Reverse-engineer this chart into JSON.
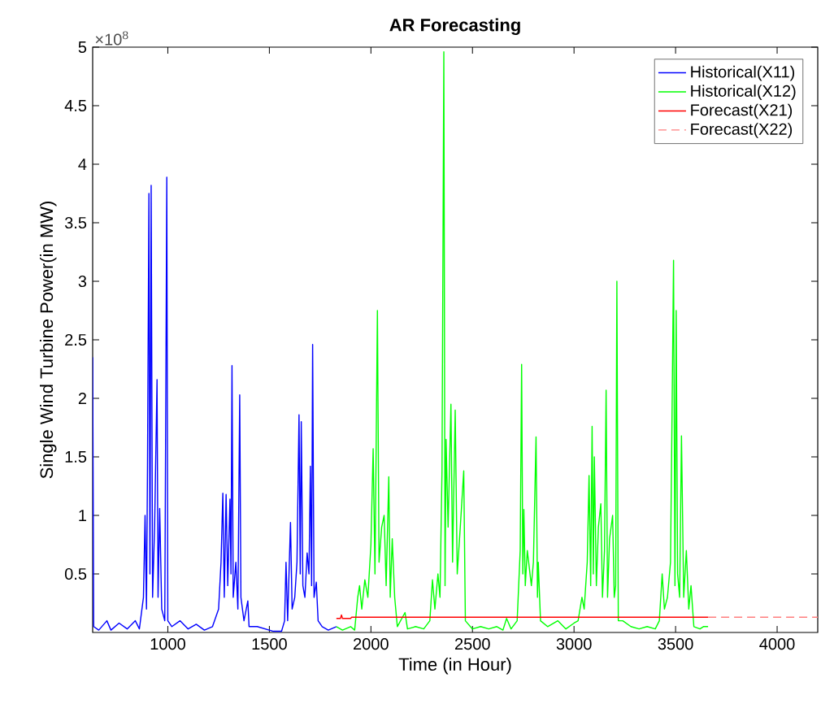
{
  "chart_data": {
    "type": "line",
    "title": "AR Forecasting",
    "xlabel": "Time (in Hour)",
    "ylabel": "Single Wind Turbine Power(in MW)",
    "annotations": [
      "×10$^{8}$"
    ],
    "xlim": [
      630,
      4200
    ],
    "ylim": [
      0,
      5
    ],
    "xticks": [
      1000,
      1500,
      2000,
      2500,
      3000,
      3500,
      4000
    ],
    "yticks": [
      0.5,
      1,
      1.5,
      2,
      2.5,
      3,
      3.5,
      4,
      4.5,
      5
    ],
    "legend": "top right",
    "series": [
      {
        "name": "Historical(X11)",
        "color": "#0000ff",
        "line_style": "solid",
        "x": [
          630,
          635,
          660,
          700,
          720,
          760,
          800,
          840,
          860,
          880,
          888,
          895,
          900,
          907,
          912,
          918,
          925,
          935,
          947,
          952,
          960,
          970,
          985,
          995,
          1000,
          1020,
          1060,
          1100,
          1140,
          1180,
          1220,
          1250,
          1262,
          1271,
          1278,
          1287,
          1295,
          1306,
          1311,
          1316,
          1322,
          1335,
          1345,
          1354,
          1360,
          1375,
          1394,
          1400,
          1440,
          1480,
          1520,
          1560,
          1575,
          1582,
          1590,
          1604,
          1612,
          1625,
          1636,
          1646,
          1652,
          1657,
          1665,
          1675,
          1686,
          1695,
          1702,
          1708,
          1713,
          1720,
          1731,
          1740,
          1760,
          1790,
          1830
        ],
        "values": [
          2.35,
          0.05,
          0.02,
          0.1,
          0.02,
          0.08,
          0.03,
          0.1,
          0.03,
          0.3,
          1.0,
          0.2,
          1.42,
          3.75,
          0.5,
          3.82,
          0.3,
          0.9,
          2.16,
          0.3,
          1.06,
          0.2,
          0.1,
          3.89,
          0.1,
          0.05,
          0.1,
          0.03,
          0.07,
          0.02,
          0.05,
          0.2,
          0.6,
          1.19,
          0.3,
          1.18,
          0.4,
          1.14,
          0.5,
          2.28,
          0.3,
          0.6,
          0.2,
          2.03,
          0.3,
          0.1,
          0.27,
          0.05,
          0.05,
          0.03,
          0.01,
          0.01,
          0.1,
          0.6,
          0.1,
          0.94,
          0.2,
          0.3,
          0.6,
          1.86,
          0.5,
          1.8,
          0.4,
          0.3,
          0.68,
          0.5,
          1.42,
          0.4,
          2.46,
          0.3,
          0.43,
          0.1,
          0.05,
          0.02,
          0.05
        ]
      },
      {
        "name": "Historical(X12)",
        "color": "#00ff00",
        "line_style": "solid",
        "x": [
          1830,
          1860,
          1900,
          1920,
          1935,
          1944,
          1955,
          1970,
          1985,
          2000,
          2011,
          2020,
          2032,
          2040,
          2053,
          2065,
          2075,
          2088,
          2095,
          2105,
          2117,
          2130,
          2168,
          2180,
          2220,
          2260,
          2290,
          2303,
          2315,
          2330,
          2340,
          2350,
          2359,
          2365,
          2370,
          2380,
          2394,
          2402,
          2415,
          2425,
          2440,
          2457,
          2465,
          2500,
          2540,
          2580,
          2620,
          2650,
          2668,
          2690,
          2720,
          2735,
          2742,
          2748,
          2753,
          2760,
          2770,
          2790,
          2800,
          2813,
          2820,
          2824,
          2835,
          2870,
          2920,
          2960,
          3000,
          3020,
          3039,
          3050,
          3065,
          3074,
          3082,
          3089,
          3095,
          3100,
          3110,
          3120,
          3132,
          3140,
          3150,
          3158,
          3165,
          3175,
          3190,
          3198,
          3205,
          3211,
          3218,
          3240,
          3280,
          3320,
          3360,
          3400,
          3420,
          3434,
          3445,
          3460,
          3475,
          3482,
          3490,
          3497,
          3503,
          3510,
          3520,
          3529,
          3540,
          3553,
          3565,
          3576,
          3590,
          3620,
          3637,
          3660
        ],
        "values": [
          0.05,
          0.02,
          0.05,
          0.02,
          0.3,
          0.4,
          0.2,
          0.45,
          0.3,
          0.75,
          1.57,
          0.5,
          2.75,
          0.6,
          0.9,
          1.0,
          0.4,
          1.33,
          0.3,
          0.8,
          0.3,
          0.05,
          0.17,
          0.03,
          0.05,
          0.03,
          0.1,
          0.45,
          0.2,
          0.5,
          0.3,
          1.38,
          4.96,
          0.4,
          1.65,
          0.9,
          1.95,
          0.6,
          1.9,
          0.5,
          0.9,
          1.38,
          0.1,
          0.03,
          0.05,
          0.03,
          0.05,
          0.02,
          0.12,
          0.03,
          0.1,
          0.7,
          2.29,
          0.5,
          1.05,
          0.4,
          0.7,
          0.4,
          0.6,
          1.67,
          0.3,
          0.6,
          0.1,
          0.05,
          0.1,
          0.03,
          0.08,
          0.1,
          0.3,
          0.2,
          0.6,
          1.34,
          0.4,
          1.76,
          0.5,
          1.5,
          0.4,
          0.9,
          1.1,
          0.3,
          0.7,
          2.07,
          0.3,
          0.8,
          1.0,
          0.3,
          0.4,
          3.0,
          0.1,
          0.1,
          0.05,
          0.03,
          0.05,
          0.03,
          0.1,
          0.5,
          0.2,
          0.3,
          0.6,
          1.75,
          3.18,
          0.4,
          2.75,
          0.5,
          0.3,
          1.68,
          0.3,
          0.7,
          0.2,
          0.4,
          0.05,
          0.03,
          0.05,
          0.05
        ]
      },
      {
        "name": "Forecast(X21)",
        "color": "#ff0000",
        "line_style": "solid",
        "x": [
          1830,
          1850,
          1855,
          1860,
          1900,
          1905,
          3660
        ],
        "values": [
          0.12,
          0.12,
          0.15,
          0.12,
          0.12,
          0.13,
          0.13
        ]
      },
      {
        "name": "Forecast(X22)",
        "color": "#ff7f7f",
        "line_style": "dashed",
        "x": [
          3660,
          4200
        ],
        "values": [
          0.13,
          0.13
        ]
      }
    ]
  }
}
